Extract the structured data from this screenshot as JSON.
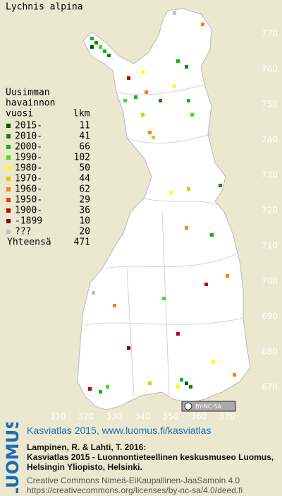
{
  "map": {
    "title": "Lychnis alpina",
    "legend": {
      "heading": [
        "Uusimman",
        "havainnon"
      ],
      "col_year": "vuosi",
      "col_count": "lkm",
      "rows": [
        {
          "label": "2015-",
          "count": 11,
          "color": "#005a00"
        },
        {
          "label": "2010-",
          "count": 41,
          "color": "#008c00"
        },
        {
          "label": "2000-",
          "count": 66,
          "color": "#00c000"
        },
        {
          "label": "1990-",
          "count": 102,
          "color": "#40e020"
        },
        {
          "label": "1980-",
          "count": 50,
          "color": "#ffff00"
        },
        {
          "label": "1970-",
          "count": 44,
          "color": "#f0c000"
        },
        {
          "label": "1960-",
          "count": 62,
          "color": "#ff8000"
        },
        {
          "label": "1950-",
          "count": 29,
          "color": "#e04000"
        },
        {
          "label": "1900-",
          "count": 36,
          "color": "#c00000"
        },
        {
          "label": "-1899",
          "count": 10,
          "color": "#900000"
        },
        {
          "label": "???",
          "count": 20,
          "color": "#c0c0c0"
        }
      ],
      "total_label": "Yhteensä",
      "total": 471
    },
    "x_ticks": [
      310,
      320,
      330,
      340,
      350,
      360,
      370
    ],
    "y_ticks": [
      770,
      760,
      750,
      740,
      730,
      720,
      710,
      700,
      690,
      680,
      670
    ],
    "license_badge": "BY-NC-SA"
  },
  "footer": {
    "logo": "LUOMUS",
    "link": "Kasviatlas 2015, www.luomus.fi/kasviatlas",
    "citation": [
      "Lampinen, R. & Lahti, T. 2016:",
      "Kasviatlas 2015 - Luonnontieteellinen keskusmuseo Luomus,",
      "Helsingin Yliopisto, Helsinki."
    ],
    "license": [
      "Creative Commons Nimeä-EiKaupallinen-JaaSamoin 4.0",
      "https://creativecommons.org/licenses/by-nc-sa/4.0/deed.fi"
    ]
  }
}
